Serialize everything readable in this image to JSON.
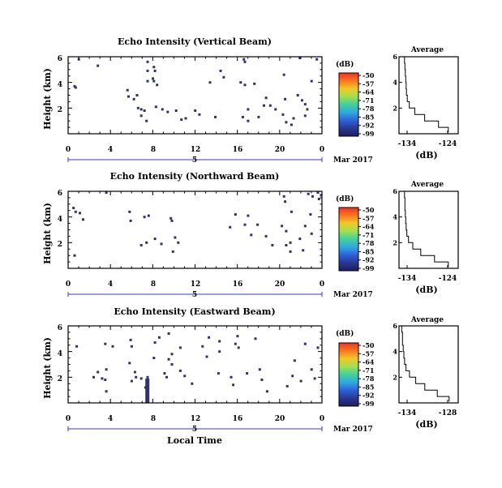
{
  "figure": {
    "time_label": "Local Time",
    "date_text": "Mar 2017",
    "day_label": "5",
    "units_label": "(dB)",
    "profile_xlabel": "(dB)"
  },
  "panels": [
    {
      "title": "Echo Intensity (Vertical Beam)",
      "ylabel": "Height (km)",
      "profile_title": "Average",
      "profile_xticks": [
        "-134",
        "-124"
      ]
    },
    {
      "title": "Echo Intensity (Northward Beam)",
      "ylabel": "Height (km)",
      "profile_title": "Average",
      "profile_xticks": [
        "-134",
        "-124"
      ]
    },
    {
      "title": "Echo Intensity (Eastward Beam)",
      "ylabel": "Height (km)",
      "profile_title": "Average",
      "profile_xticks": [
        "-134",
        "-128"
      ]
    }
  ],
  "colorbar": {
    "labels": [
      "-50",
      "-57",
      "-64",
      "-71",
      "-78",
      "-85",
      "-92",
      "-99"
    ],
    "colors": [
      "#f03220",
      "#f87820",
      "#f0c828",
      "#a0e050",
      "#40d0a0",
      "#30a8e0",
      "#3060d8",
      "#283890",
      "#1e1e5a"
    ]
  },
  "chart_data": [
    {
      "type": "heatmap",
      "title": "Echo Intensity (Vertical Beam)",
      "xlabel": "Local Time",
      "ylabel": "Height (km)",
      "xlim": [
        0,
        24
      ],
      "ylim": [
        0,
        6
      ],
      "xticks": [
        "0",
        "4",
        "8",
        "12",
        "16",
        "20",
        "0"
      ],
      "yticks": [
        "2",
        "4",
        "6"
      ],
      "colorbar_units": "(dB)",
      "colorbar_range": [
        -99,
        -50
      ],
      "points": [
        [
          0.9,
          5.8
        ],
        [
          0.5,
          3.7
        ],
        [
          0.6,
          3.6
        ],
        [
          2.7,
          5.3
        ],
        [
          7.4,
          5.6
        ],
        [
          7.4,
          4.9
        ],
        [
          8.0,
          5.2
        ],
        [
          8.1,
          4.9
        ],
        [
          8.0,
          4.1
        ],
        [
          8.3,
          3.8
        ],
        [
          7.9,
          4.3
        ],
        [
          7.4,
          4.1
        ],
        [
          5.5,
          3.4
        ],
        [
          5.6,
          2.9
        ],
        [
          6.4,
          3.0
        ],
        [
          6.1,
          2.7
        ],
        [
          6.5,
          2.0
        ],
        [
          6.8,
          1.9
        ],
        [
          7.1,
          1.8
        ],
        [
          6.8,
          1.4
        ],
        [
          7.3,
          1.0
        ],
        [
          8.2,
          2.1
        ],
        [
          8.8,
          1.9
        ],
        [
          9.3,
          1.7
        ],
        [
          10.1,
          1.8
        ],
        [
          10.6,
          1.1
        ],
        [
          11.0,
          1.2
        ],
        [
          11.9,
          1.8
        ],
        [
          12.3,
          1.5
        ],
        [
          13.8,
          1.3
        ],
        [
          13.3,
          4.0
        ],
        [
          14.6,
          4.4
        ],
        [
          14.3,
          4.9
        ],
        [
          16.5,
          5.8
        ],
        [
          16.6,
          5.6
        ],
        [
          16.2,
          4.0
        ],
        [
          16.6,
          3.8
        ],
        [
          17.5,
          3.9
        ],
        [
          16.9,
          1.9
        ],
        [
          16.4,
          1.3
        ],
        [
          16.9,
          1.0
        ],
        [
          17.9,
          1.3
        ],
        [
          18.6,
          2.8
        ],
        [
          18.4,
          2.2
        ],
        [
          19.0,
          2.2
        ],
        [
          19.5,
          1.9
        ],
        [
          20.3,
          4.6
        ],
        [
          20.4,
          2.7
        ],
        [
          20.2,
          1.5
        ],
        [
          20.5,
          0.9
        ],
        [
          21.2,
          1.2
        ],
        [
          21.0,
          0.7
        ],
        [
          21.8,
          5.9
        ],
        [
          21.6,
          3.0
        ],
        [
          22.0,
          2.6
        ],
        [
          22.3,
          2.3
        ],
        [
          22.5,
          1.9
        ],
        [
          22.3,
          1.4
        ],
        [
          22.9,
          4.1
        ],
        [
          23.4,
          5.8
        ]
      ]
    },
    {
      "type": "heatmap",
      "title": "Echo Intensity (Northward Beam)",
      "xlabel": "Local Time",
      "ylabel": "Height (km)",
      "xlim": [
        0,
        24
      ],
      "ylim": [
        0,
        6
      ],
      "xticks": [
        "0",
        "4",
        "8",
        "12",
        "16",
        "20",
        "0"
      ],
      "yticks": [
        "2",
        "4",
        "6"
      ],
      "colorbar_units": "(dB)",
      "colorbar_range": [
        -99,
        -50
      ],
      "points": [
        [
          0.4,
          4.7
        ],
        [
          0.6,
          4.4
        ],
        [
          1.0,
          4.3
        ],
        [
          1.3,
          3.8
        ],
        [
          0.5,
          1.0
        ],
        [
          3.5,
          5.9
        ],
        [
          5.7,
          4.4
        ],
        [
          5.8,
          3.7
        ],
        [
          7.1,
          4.0
        ],
        [
          7.5,
          4.1
        ],
        [
          7.3,
          2.0
        ],
        [
          6.8,
          1.8
        ],
        [
          8.1,
          2.3
        ],
        [
          8.7,
          1.9
        ],
        [
          9.6,
          3.9
        ],
        [
          9.7,
          3.7
        ],
        [
          10.0,
          2.4
        ],
        [
          10.3,
          2.0
        ],
        [
          9.8,
          1.3
        ],
        [
          15.2,
          3.2
        ],
        [
          15.7,
          4.2
        ],
        [
          16.9,
          4.1
        ],
        [
          16.6,
          3.4
        ],
        [
          17.2,
          2.6
        ],
        [
          17.8,
          3.4
        ],
        [
          18.6,
          2.5
        ],
        [
          19.2,
          1.8
        ],
        [
          20.1,
          3.3
        ],
        [
          20.5,
          2.9
        ],
        [
          20.3,
          5.6
        ],
        [
          20.4,
          5.2
        ],
        [
          21.0,
          4.4
        ],
        [
          20.9,
          2.0
        ],
        [
          20.5,
          1.8
        ],
        [
          20.9,
          1.3
        ],
        [
          21.8,
          2.3
        ],
        [
          22.1,
          1.4
        ],
        [
          22.3,
          3.3
        ],
        [
          22.8,
          4.2
        ],
        [
          23.0,
          5.6
        ],
        [
          23.5,
          5.9
        ],
        [
          23.8,
          5.7
        ],
        [
          22.6,
          5.8
        ],
        [
          22.9,
          2.7
        ],
        [
          23.6,
          5.4
        ]
      ]
    },
    {
      "type": "heatmap",
      "title": "Echo Intensity (Eastward Beam)",
      "xlabel": "Local Time",
      "ylabel": "Height (km)",
      "xlim": [
        0,
        24
      ],
      "ylim": [
        0,
        6
      ],
      "xticks": [
        "0",
        "4",
        "8",
        "12",
        "16",
        "20",
        "0"
      ],
      "yticks": [
        "2",
        "4",
        "6"
      ],
      "colorbar_units": "(dB)",
      "colorbar_range": [
        -99,
        -50
      ],
      "points": [
        [
          0.7,
          4.4
        ],
        [
          2.3,
          2.0
        ],
        [
          2.7,
          2.4
        ],
        [
          3.1,
          1.9
        ],
        [
          3.5,
          2.6
        ],
        [
          3.4,
          1.8
        ],
        [
          3.5,
          0.9
        ],
        [
          3.4,
          4.6
        ],
        [
          4.1,
          4.4
        ],
        [
          5.8,
          4.9
        ],
        [
          5.9,
          4.4
        ],
        [
          5.7,
          3.1
        ],
        [
          5.9,
          1.7
        ],
        [
          6.2,
          2.4
        ],
        [
          6.3,
          2.0
        ],
        [
          6.8,
          1.9
        ],
        [
          7.2,
          1.2
        ],
        [
          7.4,
          2.0
        ],
        [
          8.1,
          4.7
        ],
        [
          8.5,
          5.1
        ],
        [
          8.0,
          3.5
        ],
        [
          9.0,
          2.3
        ],
        [
          9.2,
          2.0
        ],
        [
          9.4,
          3.4
        ],
        [
          9.4,
          5.4
        ],
        [
          9.7,
          3.8
        ],
        [
          9.7,
          3.0
        ],
        [
          10.5,
          4.3
        ],
        [
          10.5,
          2.5
        ],
        [
          10.9,
          2.1
        ],
        [
          11.6,
          1.5
        ],
        [
          12.6,
          4.4
        ],
        [
          13.0,
          3.6
        ],
        [
          13.2,
          5.1
        ],
        [
          14.2,
          4.8
        ],
        [
          14.2,
          4.0
        ],
        [
          14.1,
          2.3
        ],
        [
          15.5,
          1.4
        ],
        [
          15.9,
          5.2
        ],
        [
          15.7,
          4.6
        ],
        [
          16.0,
          4.3
        ],
        [
          15.3,
          2.0
        ],
        [
          16.8,
          2.3
        ],
        [
          17.6,
          5.0
        ],
        [
          18.0,
          2.6
        ],
        [
          18.2,
          1.8
        ],
        [
          18.7,
          0.9
        ],
        [
          20.6,
          1.3
        ],
        [
          21.1,
          2.1
        ],
        [
          21.3,
          3.3
        ],
        [
          21.9,
          1.7
        ],
        [
          22.3,
          4.6
        ],
        [
          23.5,
          4.3
        ],
        [
          22.9,
          2.6
        ],
        [
          23.2,
          1.9
        ]
      ],
      "segments": [
        [
          7.3,
          0.0,
          1.9
        ]
      ]
    },
    {
      "type": "line",
      "title": "Average",
      "xlabel": "(dB)",
      "ylabel": "Height (km)",
      "xticks": [
        "-134",
        "-124"
      ],
      "xlim": [
        -136,
        -121
      ],
      "ylim": [
        0,
        6
      ],
      "x": [
        -134.6,
        -134.6,
        -134.5,
        -134.4,
        -134.3,
        -134.2,
        -134.1,
        -133.9,
        -133.4,
        -132.0,
        -129.5,
        -126.0,
        -123.5
      ],
      "y": [
        6.0,
        5.5,
        5.0,
        4.5,
        4.0,
        3.5,
        3.0,
        2.5,
        2.0,
        1.5,
        1.0,
        0.5,
        0.1
      ]
    },
    {
      "type": "line",
      "title": "Average",
      "xlabel": "(dB)",
      "ylabel": "Height (km)",
      "xticks": [
        "-134",
        "-124"
      ],
      "xlim": [
        -136,
        -121
      ],
      "ylim": [
        0,
        6
      ],
      "x": [
        -134.6,
        -134.6,
        -134.5,
        -134.5,
        -134.4,
        -134.3,
        -134.2,
        -134.0,
        -133.6,
        -132.5,
        -130.5,
        -127.0,
        -123.5
      ],
      "y": [
        6.0,
        5.5,
        5.0,
        4.5,
        4.0,
        3.5,
        3.0,
        2.5,
        2.0,
        1.5,
        1.0,
        0.5,
        0.1
      ]
    },
    {
      "type": "line",
      "title": "Average",
      "xlabel": "(dB)",
      "ylabel": "Height (km)",
      "xticks": [
        "-134",
        "-128"
      ],
      "xlim": [
        -135,
        -126.5
      ],
      "ylim": [
        0,
        6
      ],
      "x": [
        -134.6,
        -134.6,
        -134.5,
        -134.5,
        -134.4,
        -134.3,
        -134.2,
        -134.0,
        -133.5,
        -132.6,
        -131.3,
        -129.5,
        -127.8
      ],
      "y": [
        6.0,
        5.5,
        5.0,
        4.5,
        4.0,
        3.5,
        3.0,
        2.5,
        2.0,
        1.5,
        1.0,
        0.5,
        0.1
      ]
    }
  ]
}
